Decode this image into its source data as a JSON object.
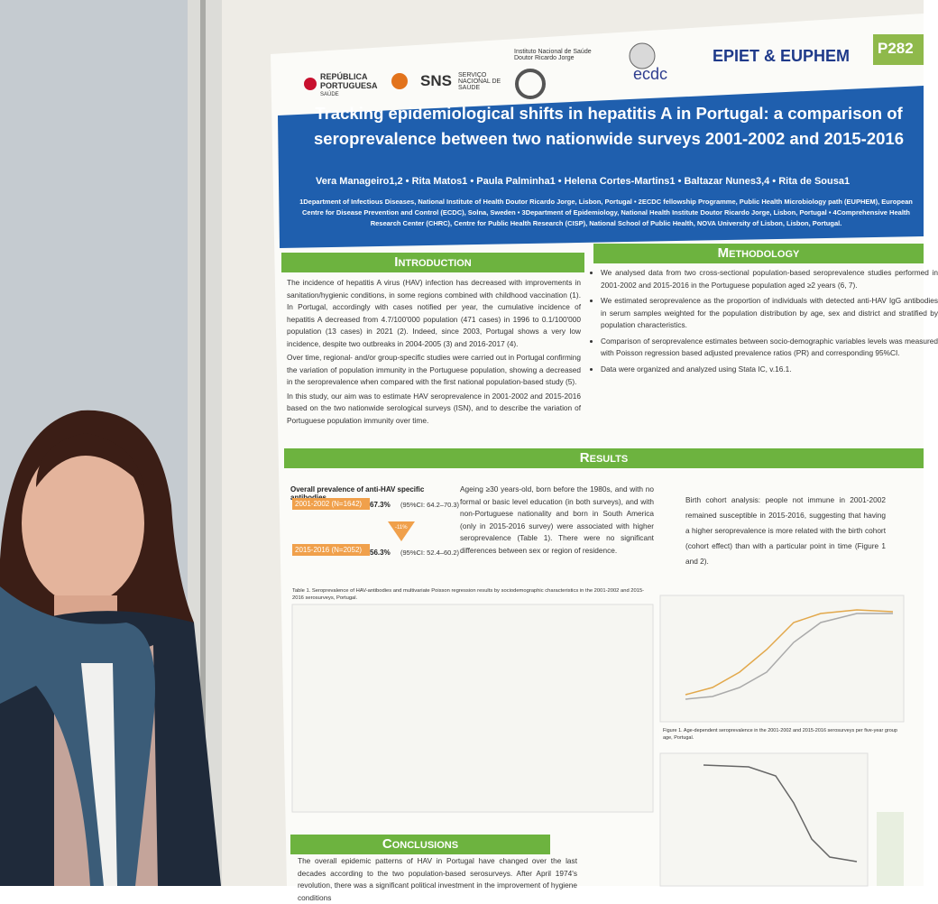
{
  "logos": {
    "republica": "REPÚBLICA PORTUGUESA",
    "saude": "SAÚDE",
    "sns": "SNS",
    "sns_sub": "SERVIÇO NACIONAL DE SAÚDE",
    "insa": "Instituto Nacional de Saúde Doutor Ricardo Jorge",
    "ecdc": "ecdc",
    "epiet": "EPIET & EUPHEM",
    "poster_id": "P282"
  },
  "title": "Tracking epidemiological shifts in hepatitis A in Portugal: a comparison of seroprevalence between two nationwide surveys 2001-2002 and 2015-2016",
  "authors": "Vera Manageiro1,2 • Rita Matos1 • Paula Palminha1 • Helena Cortes-Martins1 • Baltazar Nunes3,4 • Rita de Sousa1",
  "affiliations": "1Department of Infectious Diseases, National Institute of Health Doutor Ricardo Jorge, Lisbon, Portugal • 2ECDC fellowship Programme, Public Health Microbiology path (EUPHEM), European Centre for Disease Prevention and Control (ECDC), Solna, Sweden • 3Department of Epidemiology, National Health Institute Doutor Ricardo Jorge, Lisbon, Portugal • 4Comprehensive Health Research Center (CHRC), Centre for Public Health Research (CISP), National School of Public Health, NOVA University of Lisbon, Lisbon, Portugal.",
  "introduction": {
    "heading": "Introduction",
    "paragraphs": [
      "The incidence of hepatitis A virus (HAV) infection has decreased with improvements in sanitation/hygienic conditions, in some regions combined with childhood vaccination (1). In Portugal, accordingly with cases notified per year, the cumulative incidence of hepatitis A decreased from 4.7/100'000 population (471 cases) in 1996 to 0.1/100'000 population (13 cases) in 2021 (2). Indeed, since 2003, Portugal shows a very low incidence, despite two outbreaks in 2004-2005 (3) and 2016-2017 (4).",
      "Over time, regional- and/or group-specific studies were carried out in Portugal confirming the variation of population immunity in the Portuguese population, showing a decreased in the seroprevalence when compared with the first national population-based study (5).",
      "In this study, our aim was to estimate HAV seroprevalence in 2001-2002 and 2015-2016 based on the two nationwide serological surveys (ISN), and to describe the variation of Portuguese population immunity over time."
    ]
  },
  "methodology": {
    "heading": "Methodology",
    "bullets": [
      "We analysed data from two cross-sectional population-based seroprevalence studies performed in 2001-2002 and 2015-2016 in the Portuguese population aged ≥2 years (6, 7).",
      "We estimated seroprevalence as the proportion of individuals with detected anti-HAV IgG antibodies in serum samples weighted for the population distribution by age, sex and district and stratified by population characteristics.",
      "Comparison of seroprevalence estimates between socio-demographic variables levels was measured with Poisson regression based adjusted prevalence ratios (PR) and corresponding 95%CI.",
      "Data were organized and analyzed using Stata IC, v.16.1."
    ]
  },
  "results": {
    "heading": "Results",
    "overall_title": "Overall prevalence of anti-HAV specific antibodies",
    "survey1_label": "2001-2002 (N=1642)",
    "survey1_value": "67.3%",
    "survey1_ci": "(95%CI: 64.2–70.3)",
    "change": "-11%",
    "survey2_label": "2015-2016 (N=2052)",
    "survey2_value": "56.3%",
    "survey2_ci": "(95%CI: 52.4–60.2)",
    "middle_text": "Ageing ≥30 years-old, born before the 1980s, and with no formal or basic level education (in both surveys), and with non-Portuguese nationality and born in South America (only in 2015-2016 survey) were associated with higher seroprevalence (Table 1). There were no significant differences between sex or region of residence.",
    "cohort_text": "Birth cohort analysis: people not immune in 2001-2002 remained susceptible in 2015-2016, suggesting that having a higher seroprevalence is more related with the birth cohort (cohort effect) than with a particular point in time (Figure 1 and 2).",
    "table_caption": "Table 1. Seroprevalence of HAV-antibodies and multivariate Poisson regression results by sociodemographic characteristics in the 2001-2002 and 2015-2016 serosurveys, Portugal.",
    "figure_caption": "Figure 1. Age-dependent seroprevalence in the 2001-2002 and 2015-2016 serosurveys per five-year group age, Portugal."
  },
  "conclusions": {
    "heading": "Conclusions",
    "text": "The overall epidemic patterns of HAV in Portugal have changed over the last decades according to the two population-based serosurveys. After April 1974's revolution, there was a significant political investment in the improvement of hygiene conditions"
  }
}
